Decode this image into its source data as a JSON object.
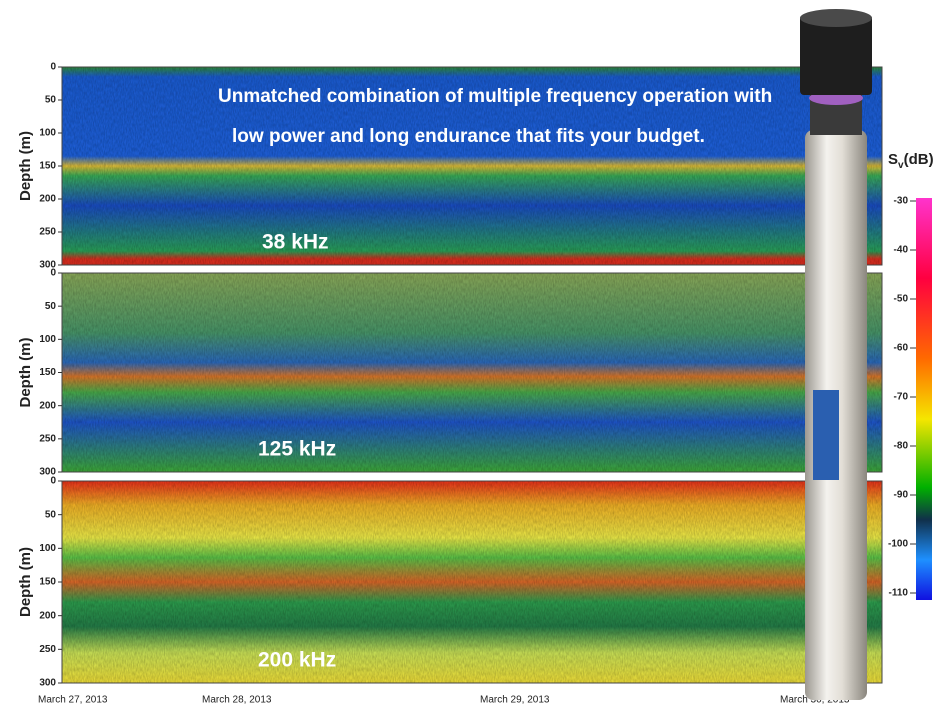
{
  "headline": [
    "Unmatched combination of multiple frequency operation with",
    "low power and long endurance that fits your budget."
  ],
  "y_axis_label": "Depth (m)",
  "depth_range": [
    0,
    300
  ],
  "depth_ticks": [
    0,
    50,
    100,
    150,
    200,
    250,
    300
  ],
  "panels": [
    {
      "label": "38 kHz"
    },
    {
      "label": "125 kHz"
    },
    {
      "label": "200 kHz"
    }
  ],
  "x_ticks": [
    "March 27, 2013",
    "March 28, 2013",
    "March 29, 2013",
    "March 30, 2013"
  ],
  "colorbar": {
    "symbol": "S",
    "subscript": "v",
    "unit": "(dB)",
    "range": [
      -30,
      -110
    ],
    "ticks": [
      -30,
      -40,
      -50,
      -60,
      -70,
      -80,
      -90,
      -100,
      -110
    ]
  }
}
